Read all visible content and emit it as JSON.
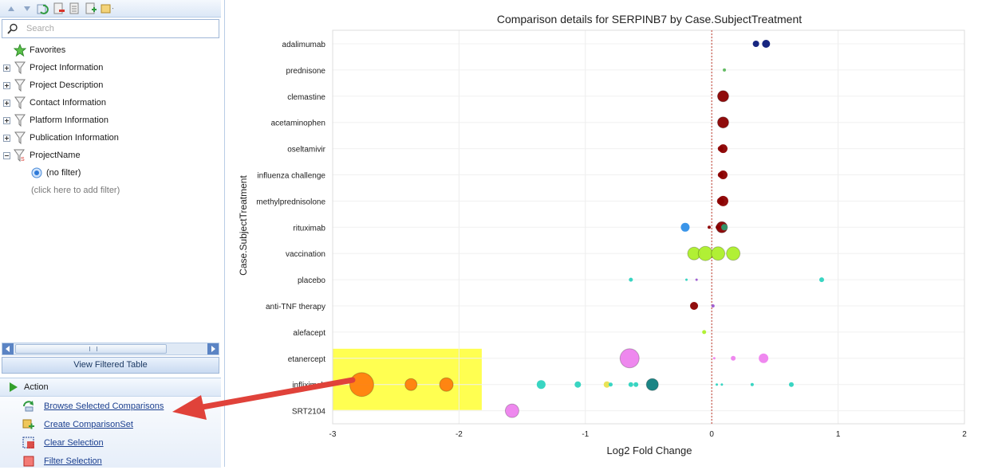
{
  "search": {
    "placeholder": "Search"
  },
  "tree": [
    {
      "label": "Favorites",
      "icon": "star-icon",
      "expander": "none"
    },
    {
      "label": "Project Information",
      "icon": "filter-icon",
      "expander": "plus"
    },
    {
      "label": "Project Description",
      "icon": "filter-icon",
      "expander": "plus"
    },
    {
      "label": "Contact Information",
      "icon": "filter-icon",
      "expander": "plus"
    },
    {
      "label": "Platform Information",
      "icon": "filter-icon",
      "expander": "plus"
    },
    {
      "label": "Publication Information",
      "icon": "filter-icon",
      "expander": "plus"
    },
    {
      "label": "ProjectName",
      "icon": "filter-active-icon",
      "expander": "minus"
    }
  ],
  "tree_children": {
    "no_filter": "(no filter)",
    "add_filter_hint": "(click here to add filter)"
  },
  "view_filtered_table": "View Filtered Table",
  "action": {
    "title": "Action",
    "items": [
      {
        "label": "Browse Selected Comparisons",
        "icon": "browse-icon"
      },
      {
        "label": "Create ComparisonSet",
        "icon": "create-set-icon"
      },
      {
        "label": "Clear Selection",
        "icon": "clear-selection-icon"
      },
      {
        "label": "Filter Selection",
        "icon": "filter-selection-icon"
      }
    ]
  },
  "chart_data": {
    "type": "scatter",
    "title": "Comparison details for SERPINB7 by Case.SubjectTreatment",
    "xlabel": "Log2 Fold Change",
    "ylabel": "Case.SubjectTreatment",
    "xlim": [
      -3,
      2
    ],
    "xticks": [
      "-3",
      "-2",
      "-1",
      "0",
      "1",
      "2"
    ],
    "grid": true,
    "reference_line_x": 0,
    "categories": [
      "adalimumab",
      "prednisone",
      "clemastine",
      "acetaminophen",
      "oseltamivir",
      "influenza challenge",
      "methylprednisolone",
      "rituximab",
      "vaccination",
      "placebo",
      "anti-TNF therapy",
      "alefacept",
      "etanercept",
      "infliximab",
      "SRT2104"
    ],
    "highlight": {
      "color": "#ffff33",
      "category_labels_covered": [
        "etanercept",
        "infliximab"
      ],
      "x_from": -3,
      "x_to": -1.82
    },
    "points": [
      {
        "category": "adalimumab",
        "x": 0.35,
        "size": 8,
        "color": "#0b1a7a"
      },
      {
        "category": "adalimumab",
        "x": 0.43,
        "size": 10,
        "color": "#0b1a7a"
      },
      {
        "category": "prednisone",
        "x": 0.1,
        "size": 4,
        "color": "#5cb85c"
      },
      {
        "category": "clemastine",
        "x": 0.09,
        "size": 14,
        "color": "#8b0000"
      },
      {
        "category": "acetaminophen",
        "x": 0.09,
        "size": 14,
        "color": "#8b0000"
      },
      {
        "category": "oseltamivir",
        "x": 0.09,
        "size": 11,
        "color": "#8b0000"
      },
      {
        "category": "oseltamivir",
        "x": 0.07,
        "size": 7,
        "color": "#8b0000"
      },
      {
        "category": "influenza challenge",
        "x": 0.09,
        "size": 11,
        "color": "#8b0000"
      },
      {
        "category": "influenza challenge",
        "x": 0.07,
        "size": 7,
        "color": "#8b0000"
      },
      {
        "category": "methylprednisolone",
        "x": 0.09,
        "size": 13,
        "color": "#8b0000"
      },
      {
        "category": "methylprednisolone",
        "x": 0.07,
        "size": 9,
        "color": "#8b0000"
      },
      {
        "category": "rituximab",
        "x": -0.21,
        "size": 11,
        "color": "#2f8fe8"
      },
      {
        "category": "rituximab",
        "x": -0.02,
        "size": 4,
        "color": "#8b0000"
      },
      {
        "category": "rituximab",
        "x": 0.05,
        "size": 6,
        "color": "#8b0000"
      },
      {
        "category": "rituximab",
        "x": 0.08,
        "size": 14,
        "color": "#8b0000"
      },
      {
        "category": "rituximab",
        "x": 0.1,
        "size": 8,
        "color": "#2e9a6e"
      },
      {
        "category": "vaccination",
        "x": -0.14,
        "size": 16,
        "color": "#adf02b"
      },
      {
        "category": "vaccination",
        "x": -0.05,
        "size": 18,
        "color": "#adf02b"
      },
      {
        "category": "vaccination",
        "x": 0.05,
        "size": 17,
        "color": "#adf02b"
      },
      {
        "category": "vaccination",
        "x": 0.17,
        "size": 17,
        "color": "#adf02b"
      },
      {
        "category": "placebo",
        "x": -0.64,
        "size": 5,
        "color": "#2ed3bf"
      },
      {
        "category": "placebo",
        "x": -0.2,
        "size": 3,
        "color": "#2ed3bf"
      },
      {
        "category": "placebo",
        "x": -0.12,
        "size": 3,
        "color": "#9b59d0"
      },
      {
        "category": "placebo",
        "x": 0.87,
        "size": 6,
        "color": "#2ed3bf"
      },
      {
        "category": "anti-TNF therapy",
        "x": -0.14,
        "size": 10,
        "color": "#8b0000"
      },
      {
        "category": "anti-TNF therapy",
        "x": 0.01,
        "size": 4,
        "color": "#9b59d0"
      },
      {
        "category": "alefacept",
        "x": -0.06,
        "size": 5,
        "color": "#adf02b"
      },
      {
        "category": "etanercept",
        "x": -0.65,
        "size": 24,
        "color": "#ee82ee"
      },
      {
        "category": "etanercept",
        "x": 0.02,
        "size": 3,
        "color": "#ee82ee"
      },
      {
        "category": "etanercept",
        "x": 0.17,
        "size": 6,
        "color": "#ee82ee"
      },
      {
        "category": "etanercept",
        "x": 0.41,
        "size": 12,
        "color": "#ee82ee"
      },
      {
        "category": "infliximab",
        "x": -2.77,
        "size": 30,
        "color": "#ff7f0e"
      },
      {
        "category": "infliximab",
        "x": -2.38,
        "size": 15,
        "color": "#ff7f0e"
      },
      {
        "category": "infliximab",
        "x": -2.1,
        "size": 17,
        "color": "#ff7f0e"
      },
      {
        "category": "infliximab",
        "x": -1.35,
        "size": 11,
        "color": "#2ed3bf"
      },
      {
        "category": "infliximab",
        "x": -1.06,
        "size": 8,
        "color": "#2ed3bf"
      },
      {
        "category": "infliximab",
        "x": -0.83,
        "size": 8,
        "color": "#e8e24f"
      },
      {
        "category": "infliximab",
        "x": -0.8,
        "size": 5,
        "color": "#2ed3bf"
      },
      {
        "category": "infliximab",
        "x": -0.64,
        "size": 6,
        "color": "#2ed3bf"
      },
      {
        "category": "infliximab",
        "x": -0.6,
        "size": 6,
        "color": "#2ed3bf"
      },
      {
        "category": "infliximab",
        "x": -0.47,
        "size": 15,
        "color": "#0f7f7f"
      },
      {
        "category": "infliximab",
        "x": 0.04,
        "size": 3,
        "color": "#2ed3bf"
      },
      {
        "category": "infliximab",
        "x": 0.08,
        "size": 3,
        "color": "#2ed3bf"
      },
      {
        "category": "infliximab",
        "x": 0.32,
        "size": 4,
        "color": "#2ed3bf"
      },
      {
        "category": "infliximab",
        "x": 0.63,
        "size": 6,
        "color": "#2ed3bf"
      },
      {
        "category": "SRT2104",
        "x": -1.58,
        "size": 17,
        "color": "#ee82ee"
      }
    ]
  }
}
